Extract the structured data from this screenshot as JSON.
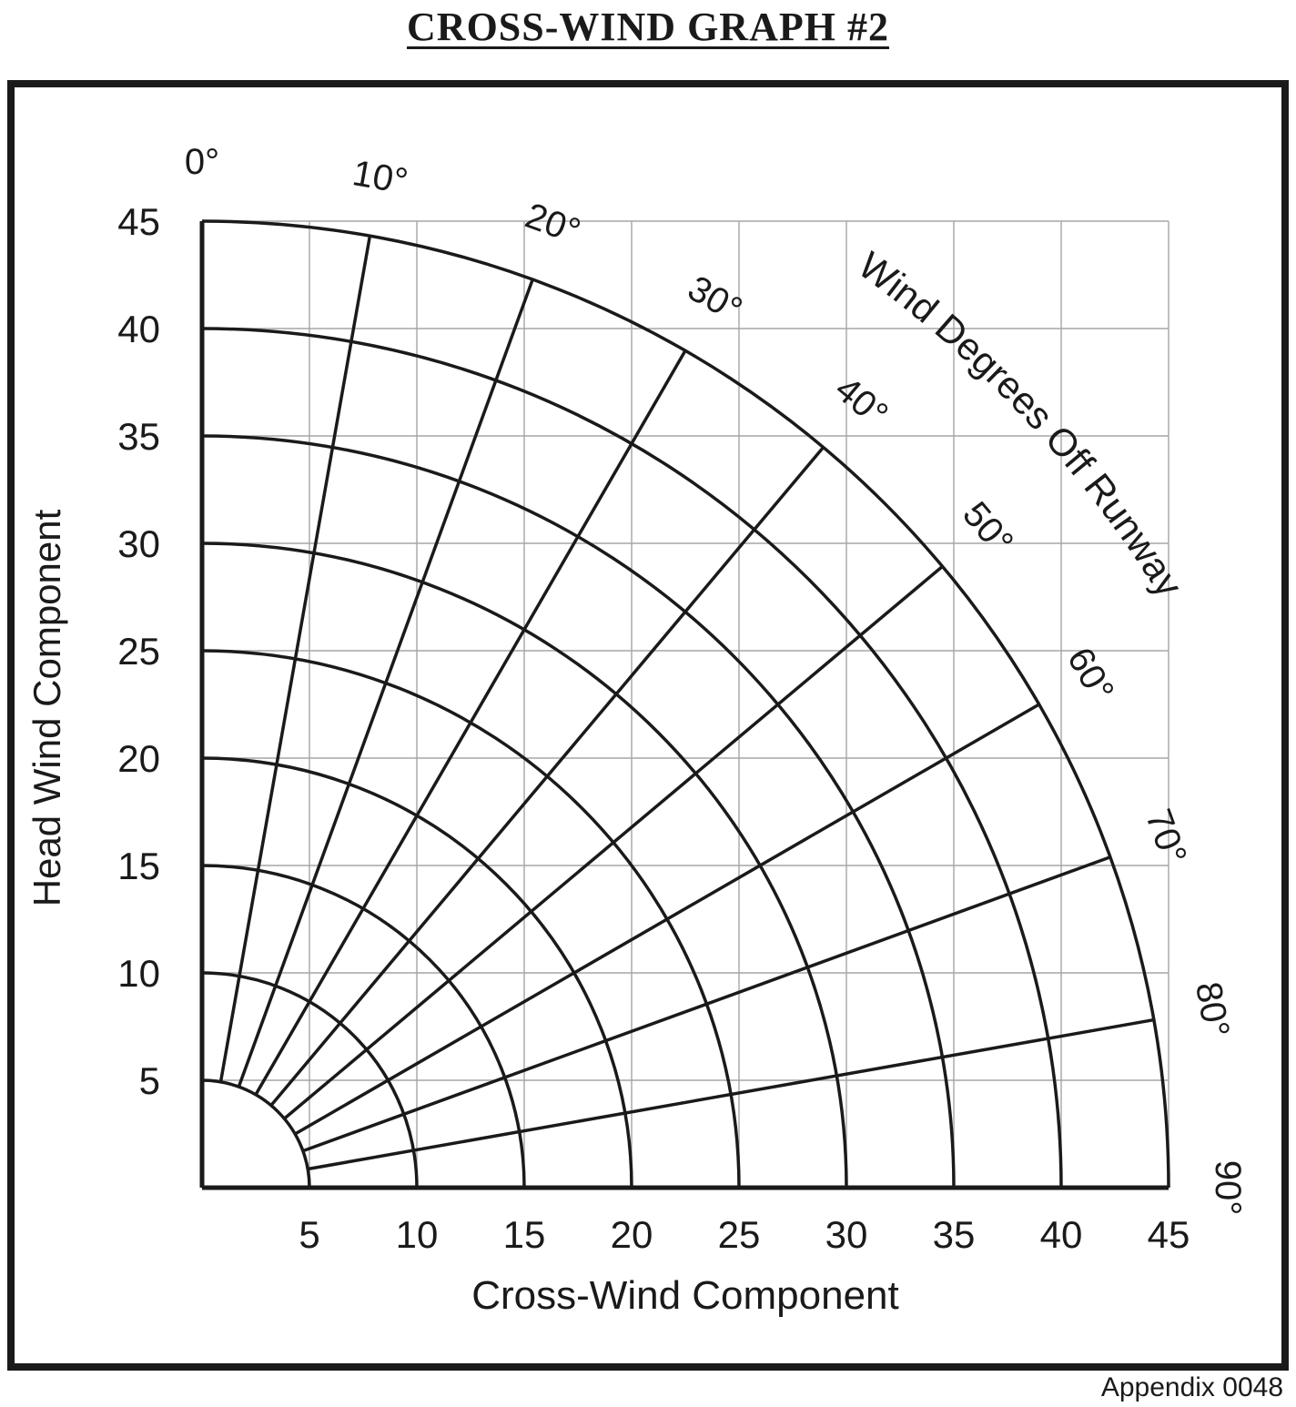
{
  "page": {
    "title": "CROSS-WIND GRAPH #2",
    "footnote": "Appendix 0048"
  },
  "chart_data": {
    "type": "polar-grid",
    "title": "CROSS-WIND GRAPH #2",
    "xlabel": "Cross-Wind Component",
    "ylabel": "Head Wind Component",
    "angle_axis_title": "Wind Degrees Off Runway",
    "angles_deg": [
      0,
      10,
      20,
      30,
      40,
      50,
      60,
      70,
      80,
      90
    ],
    "angle_labels": [
      "0°",
      "10°",
      "20°",
      "30°",
      "40°",
      "50°",
      "60°",
      "70°",
      "80°",
      "90°"
    ],
    "radii": [
      5,
      10,
      15,
      20,
      25,
      30,
      35,
      40,
      45
    ],
    "x_ticks": [
      5,
      10,
      15,
      20,
      25,
      30,
      35,
      40,
      45
    ],
    "y_ticks": [
      5,
      10,
      15,
      20,
      25,
      30,
      35,
      40,
      45
    ],
    "r_min": 5,
    "r_max": 45,
    "grid_step": 5,
    "grid_on": true,
    "colors": {
      "line": "#1a1a1a",
      "grid": "#a6a6a6",
      "background": "#ffffff"
    }
  }
}
